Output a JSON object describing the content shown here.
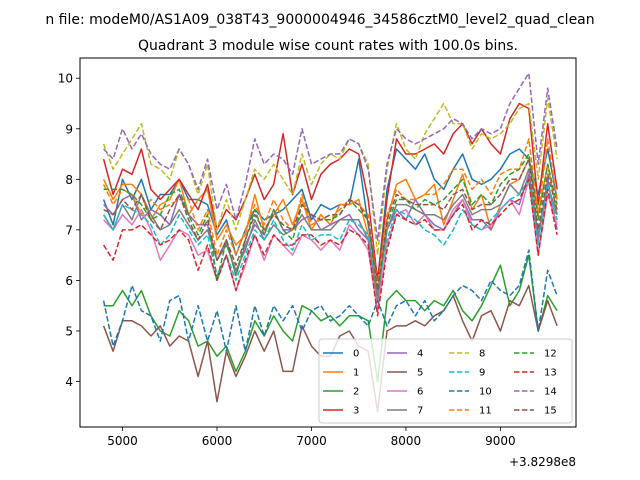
{
  "suptitle": "n file: modeM0/AS1A09_038T43_9000004946_34586cztM0_level2_quad_clean",
  "chart_data": {
    "type": "line",
    "title": "Quadrant 3 module wise count rates with 100.0s bins.",
    "x_offset_label": "+3.8298e8",
    "xlabel": "",
    "ylabel": "",
    "xlim": [
      4550,
      9800
    ],
    "ylim": [
      3.1,
      10.4
    ],
    "xticks": [
      5000,
      6000,
      7000,
      8000,
      9000
    ],
    "yticks": [
      4,
      5,
      6,
      7,
      8,
      9,
      10
    ],
    "legend_position": "lower-right",
    "x": [
      4800,
      4900,
      5000,
      5100,
      5200,
      5300,
      5400,
      5500,
      5600,
      5700,
      5800,
      5900,
      6000,
      6100,
      6200,
      6300,
      6400,
      6500,
      6600,
      6700,
      6800,
      6900,
      7000,
      7100,
      7200,
      7300,
      7400,
      7500,
      7600,
      7700,
      7800,
      7900,
      8000,
      8100,
      8200,
      8300,
      8400,
      8500,
      8600,
      8700,
      8800,
      8900,
      9000,
      9100,
      9200,
      9300,
      9400,
      9500,
      9600
    ],
    "series": [
      {
        "name": "0",
        "color": "#1f77b4",
        "dash": "solid",
        "values": [
          7.6,
          7.1,
          8.0,
          7.6,
          8.0,
          7.4,
          7.7,
          7.7,
          8.0,
          7.6,
          7.6,
          7.5,
          6.9,
          7.2,
          6.5,
          7.0,
          7.4,
          7.2,
          7.3,
          7.4,
          7.6,
          7.8,
          7.2,
          7.5,
          7.4,
          7.5,
          7.5,
          8.4,
          7.1,
          6.0,
          7.8,
          8.6,
          8.4,
          8.2,
          8.5,
          8.0,
          7.8,
          8.2,
          8.5,
          8.0,
          7.9,
          8.0,
          8.2,
          8.5,
          8.6,
          8.4,
          7.7,
          8.6,
          7.6
        ]
      },
      {
        "name": "1",
        "color": "#ff7f0e",
        "dash": "solid",
        "values": [
          8.0,
          7.6,
          7.9,
          7.9,
          7.7,
          7.2,
          7.5,
          7.6,
          8.0,
          7.3,
          7.6,
          7.8,
          6.8,
          7.1,
          6.7,
          6.9,
          7.7,
          7.0,
          7.3,
          7.6,
          7.1,
          7.6,
          7.0,
          7.3,
          7.1,
          7.5,
          7.5,
          7.6,
          6.9,
          5.8,
          7.2,
          7.9,
          8.0,
          7.6,
          7.7,
          7.9,
          7.1,
          7.6,
          8.1,
          7.4,
          7.7,
          7.0,
          7.5,
          7.9,
          8.0,
          8.4,
          7.3,
          8.3,
          7.3
        ]
      },
      {
        "name": "2",
        "color": "#2ca02c",
        "dash": "solid",
        "values": [
          5.5,
          5.5,
          5.8,
          5.5,
          5.8,
          5.3,
          5.0,
          4.9,
          5.4,
          5.2,
          4.7,
          4.8,
          4.5,
          4.7,
          4.2,
          4.6,
          5.2,
          4.9,
          5.3,
          5.0,
          4.8,
          5.5,
          5.4,
          5.2,
          5.3,
          5.1,
          5.3,
          5.3,
          5.2,
          4.0,
          5.6,
          5.8,
          5.6,
          5.6,
          5.4,
          5.6,
          5.5,
          5.8,
          5.4,
          5.2,
          5.5,
          5.9,
          6.3,
          5.5,
          5.8,
          6.5,
          5.0,
          5.7,
          5.4
        ]
      },
      {
        "name": "3",
        "color": "#d62728",
        "dash": "solid",
        "values": [
          8.4,
          7.7,
          8.2,
          8.1,
          8.6,
          7.8,
          7.6,
          7.8,
          8.0,
          7.7,
          7.4,
          7.9,
          7.0,
          7.4,
          7.2,
          7.6,
          8.1,
          7.6,
          7.9,
          8.9,
          7.7,
          8.3,
          7.6,
          8.1,
          8.3,
          8.4,
          8.6,
          8.5,
          7.6,
          6.0,
          7.6,
          8.8,
          8.5,
          8.5,
          8.6,
          8.7,
          8.5,
          8.9,
          9.1,
          8.7,
          9.0,
          8.7,
          8.5,
          9.2,
          9.5,
          9.4,
          7.5,
          9.1,
          7.8
        ]
      },
      {
        "name": "4",
        "color": "#9467bd",
        "dash": "solid",
        "values": [
          7.5,
          7.3,
          7.6,
          7.7,
          7.2,
          7.4,
          7.3,
          7.1,
          7.7,
          7.3,
          7.1,
          7.1,
          6.4,
          6.8,
          6.1,
          6.7,
          7.1,
          6.9,
          7.4,
          7.0,
          7.0,
          7.2,
          7.3,
          7.0,
          7.1,
          7.2,
          7.3,
          7.0,
          6.8,
          5.7,
          7.0,
          7.4,
          7.2,
          7.6,
          7.3,
          7.1,
          7.0,
          7.3,
          7.6,
          7.2,
          7.2,
          7.0,
          7.4,
          7.6,
          7.5,
          8.1,
          6.8,
          8.0,
          7.0
        ]
      },
      {
        "name": "5",
        "color": "#8c564b",
        "dash": "solid",
        "values": [
          5.1,
          4.6,
          5.2,
          5.2,
          5.1,
          4.9,
          5.1,
          4.7,
          4.9,
          4.8,
          4.1,
          4.8,
          3.6,
          4.6,
          4.1,
          4.5,
          5.0,
          4.6,
          5.0,
          4.2,
          4.2,
          5.1,
          4.7,
          4.5,
          4.5,
          4.9,
          5.0,
          4.7,
          4.6,
          3.4,
          5.0,
          5.1,
          5.1,
          5.2,
          5.1,
          5.3,
          5.4,
          5.7,
          5.2,
          4.8,
          5.3,
          5.4,
          5.0,
          5.6,
          5.5,
          5.9,
          5.0,
          5.6,
          5.1
        ]
      },
      {
        "name": "6",
        "color": "#e377c2",
        "dash": "solid",
        "values": [
          7.2,
          7.0,
          7.3,
          7.1,
          7.4,
          7.0,
          6.4,
          6.7,
          7.0,
          6.9,
          6.5,
          6.6,
          6.0,
          6.5,
          5.8,
          6.3,
          6.9,
          6.4,
          6.9,
          6.7,
          6.5,
          6.9,
          6.8,
          6.6,
          6.8,
          6.6,
          7.1,
          6.9,
          6.6,
          5.4,
          6.7,
          7.3,
          7.4,
          7.1,
          7.3,
          7.0,
          7.0,
          7.4,
          7.6,
          7.1,
          7.0,
          7.1,
          7.4,
          7.6,
          7.3,
          8.0,
          6.5,
          7.7,
          7.1
        ]
      },
      {
        "name": "7",
        "color": "#7f7f7f",
        "dash": "solid",
        "values": [
          7.3,
          7.0,
          7.5,
          7.2,
          7.7,
          7.3,
          7.0,
          7.1,
          7.4,
          7.1,
          6.8,
          7.0,
          6.4,
          6.7,
          6.2,
          6.6,
          7.2,
          6.8,
          7.1,
          6.9,
          7.0,
          7.3,
          7.0,
          7.0,
          7.0,
          7.2,
          7.2,
          7.2,
          6.8,
          5.6,
          7.0,
          7.5,
          7.5,
          7.4,
          7.3,
          7.3,
          7.2,
          7.5,
          7.7,
          7.3,
          7.4,
          7.4,
          7.5,
          7.9,
          7.7,
          8.2,
          6.9,
          7.9,
          7.3
        ]
      },
      {
        "name": "8",
        "color": "#bcbd22",
        "dash": "dashed",
        "values": [
          8.7,
          8.2,
          8.5,
          8.8,
          9.1,
          8.3,
          8.2,
          8.0,
          8.6,
          8.3,
          7.7,
          8.3,
          7.0,
          7.6,
          7.0,
          7.6,
          8.2,
          8.0,
          8.3,
          8.0,
          7.7,
          8.5,
          7.9,
          8.3,
          8.5,
          8.4,
          8.8,
          8.7,
          8.3,
          6.5,
          8.2,
          9.1,
          8.6,
          8.4,
          8.9,
          9.2,
          9.5,
          9.1,
          9.1,
          8.6,
          8.9,
          8.8,
          8.9,
          9.1,
          9.4,
          9.5,
          8.0,
          9.6,
          8.4
        ]
      },
      {
        "name": "9",
        "color": "#17becf",
        "dash": "dashed",
        "values": [
          7.3,
          7.0,
          7.5,
          7.4,
          7.3,
          7.1,
          6.7,
          6.9,
          7.3,
          7.0,
          6.7,
          6.9,
          6.1,
          6.5,
          6.0,
          6.5,
          7.0,
          6.8,
          7.2,
          6.8,
          6.6,
          7.1,
          6.8,
          6.9,
          6.9,
          6.8,
          7.2,
          7.1,
          6.9,
          5.8,
          6.8,
          7.4,
          7.3,
          7.2,
          7.0,
          6.9,
          6.7,
          7.0,
          7.4,
          7.1,
          7.0,
          7.2,
          7.4,
          7.6,
          7.7,
          8.0,
          6.7,
          7.9,
          7.2
        ]
      },
      {
        "name": "10",
        "color": "#1f77b4",
        "dash": "dashed",
        "values": [
          5.6,
          4.7,
          5.2,
          5.9,
          5.4,
          5.3,
          4.8,
          5.6,
          5.7,
          4.8,
          5.5,
          4.8,
          5.4,
          4.6,
          5.5,
          4.6,
          5.5,
          4.9,
          5.5,
          5.2,
          5.5,
          5.0,
          5.4,
          5.5,
          5.2,
          5.3,
          5.5,
          5.3,
          5.1,
          5.6,
          5.1,
          5.5,
          5.6,
          5.3,
          5.6,
          5.2,
          5.4,
          5.7,
          5.9,
          5.8,
          5.6,
          6.0,
          5.8,
          5.7,
          5.9,
          6.6,
          5.0,
          6.2,
          5.7
        ]
      },
      {
        "name": "11",
        "color": "#ff7f0e",
        "dash": "dashed",
        "values": [
          7.9,
          7.5,
          7.8,
          7.7,
          7.3,
          7.6,
          7.4,
          7.5,
          7.6,
          7.6,
          7.0,
          7.4,
          6.5,
          7.0,
          6.5,
          7.0,
          7.5,
          7.1,
          7.6,
          7.2,
          7.0,
          7.7,
          7.1,
          7.2,
          7.2,
          7.4,
          7.6,
          7.5,
          7.3,
          5.9,
          7.3,
          7.8,
          7.6,
          7.6,
          7.7,
          7.7,
          7.9,
          8.2,
          8.2,
          7.8,
          8.0,
          7.7,
          8.1,
          8.2,
          8.2,
          8.8,
          7.3,
          8.8,
          7.6
        ]
      },
      {
        "name": "12",
        "color": "#2ca02c",
        "dash": "dashed",
        "values": [
          7.8,
          7.8,
          7.8,
          7.7,
          7.5,
          7.2,
          7.3,
          7.7,
          7.8,
          7.3,
          6.9,
          7.3,
          6.0,
          6.8,
          6.1,
          6.8,
          7.4,
          6.9,
          7.4,
          7.0,
          6.8,
          7.5,
          7.3,
          7.2,
          7.2,
          7.3,
          7.6,
          7.4,
          7.2,
          5.8,
          7.1,
          7.6,
          7.6,
          7.4,
          7.6,
          7.5,
          7.6,
          7.8,
          8.0,
          7.5,
          7.7,
          7.5,
          7.9,
          8.1,
          8.2,
          8.5,
          7.2,
          8.3,
          7.5
        ]
      },
      {
        "name": "13",
        "color": "#d62728",
        "dash": "dashed",
        "values": [
          6.7,
          6.4,
          7.0,
          7.0,
          7.1,
          6.9,
          6.7,
          6.8,
          7.0,
          6.8,
          6.2,
          6.7,
          6.0,
          6.5,
          5.8,
          6.4,
          6.9,
          6.5,
          6.9,
          6.7,
          6.7,
          6.9,
          6.9,
          6.7,
          6.8,
          6.7,
          7.0,
          6.9,
          6.7,
          5.3,
          6.6,
          7.3,
          7.2,
          7.1,
          7.2,
          7.0,
          7.0,
          7.3,
          7.5,
          7.0,
          7.2,
          7.1,
          7.3,
          7.5,
          7.6,
          8.0,
          6.5,
          7.8,
          6.9
        ]
      },
      {
        "name": "14",
        "color": "#9467bd",
        "dash": "dashed",
        "values": [
          8.6,
          8.4,
          9.0,
          8.6,
          8.9,
          8.5,
          8.3,
          8.2,
          8.6,
          8.3,
          7.8,
          8.4,
          7.4,
          7.9,
          7.2,
          7.9,
          8.8,
          8.3,
          8.5,
          8.4,
          8.1,
          9.0,
          8.3,
          8.4,
          8.5,
          8.5,
          8.8,
          8.7,
          8.2,
          6.8,
          8.3,
          9.0,
          8.8,
          8.7,
          8.8,
          8.9,
          9.0,
          9.2,
          9.1,
          8.8,
          9.0,
          8.9,
          9.0,
          9.5,
          9.8,
          10.1,
          8.3,
          9.8,
          8.6
        ]
      },
      {
        "name": "15",
        "color": "#8c564b",
        "dash": "dashed",
        "values": [
          7.4,
          7.3,
          7.6,
          7.4,
          7.7,
          7.2,
          7.0,
          7.4,
          7.7,
          7.2,
          6.8,
          7.2,
          6.4,
          6.8,
          6.3,
          6.8,
          7.3,
          7.0,
          7.3,
          7.1,
          7.0,
          7.5,
          7.3,
          7.2,
          7.3,
          7.3,
          7.6,
          7.5,
          7.2,
          5.8,
          7.2,
          7.7,
          7.6,
          7.5,
          7.5,
          7.5,
          7.4,
          7.7,
          7.8,
          7.4,
          7.5,
          7.5,
          7.7,
          8.0,
          8.0,
          8.4,
          7.0,
          8.1,
          7.4
        ]
      }
    ]
  }
}
